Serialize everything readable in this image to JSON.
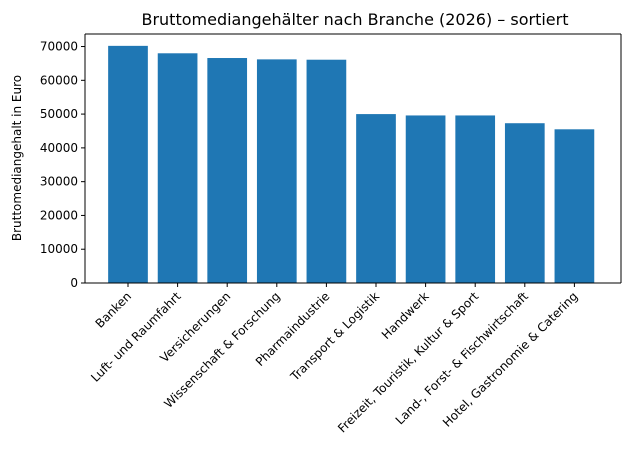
{
  "chart_data": {
    "type": "bar",
    "title": "Bruttomediangehälter nach Branche (2026) – sortiert",
    "xlabel": "",
    "ylabel": "Bruttomediangehalt in Euro",
    "categories": [
      "Banken",
      "Luft- und Raumfahrt",
      "Versicherungen",
      "Wissenschaft & Forschung",
      "Pharmaindustrie",
      "Transport & Logistik",
      "Handwerk",
      "Freizeit, Touristik, Kultur & Sport",
      "Land-, Forst- & Fischwirtschaft",
      "Hotel, Gastronomie & Catering"
    ],
    "values": [
      70200,
      68000,
      66600,
      66200,
      66100,
      50000,
      49600,
      49600,
      47300,
      45500
    ],
    "ylim": [
      0,
      73710
    ],
    "yticks": [
      0,
      10000,
      20000,
      30000,
      40000,
      50000,
      60000,
      70000
    ],
    "bar_color": "#1f77b4",
    "grid": false
  }
}
